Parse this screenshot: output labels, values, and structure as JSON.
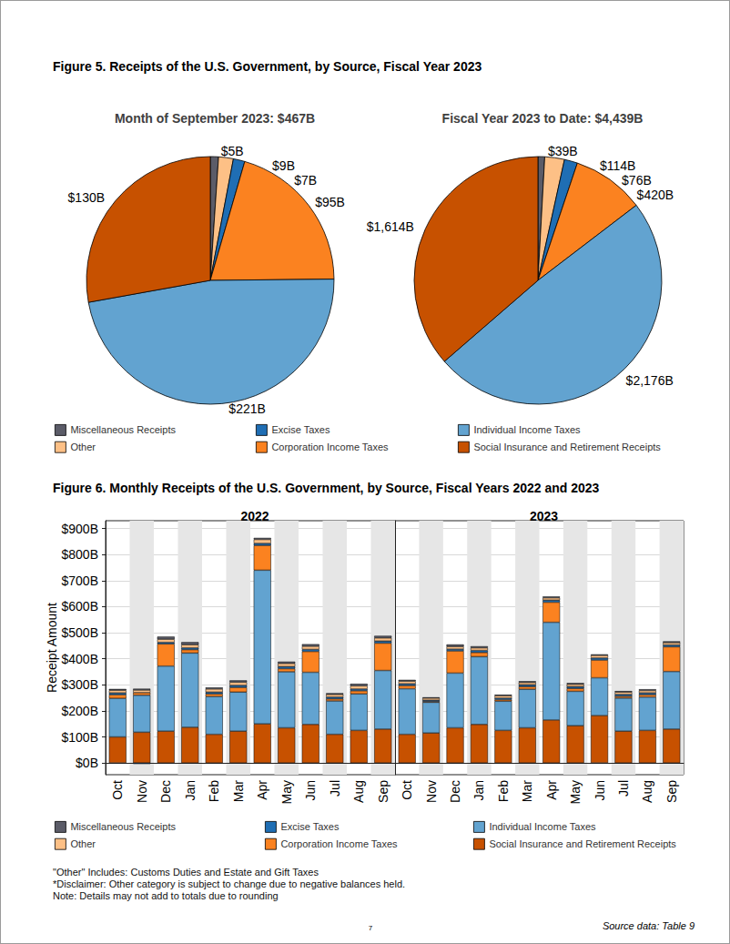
{
  "page": {
    "figure_titles": [
      "Figure 5. Receipts of the U.S. Government, by Source, Fiscal Year 2023",
      "Figure 6. Monthly Receipts of the U.S. Government, by Source, Fiscal Years 2022 and 2023"
    ],
    "notes": [
      "\"Other\" Includes: Customs Duties and Estate and Gift Taxes",
      "*Disclaimer: Other category is subject to change due to negative balances held.",
      "Note: Details may not add to totals due to rounding"
    ],
    "page_number": "7",
    "source": "Source data: Table 9"
  },
  "chart_data": [
    {
      "type": "pie",
      "title": "Month of September 2023: $467B",
      "categories": [
        "Miscellaneous Receipts",
        "Other",
        "Excise Taxes",
        "Corporation Income Taxes",
        "Individual Income Taxes",
        "Social Insurance and Retirement Receipts"
      ],
      "values": [
        5,
        9,
        7,
        95,
        221,
        130
      ],
      "value_labels": [
        "$5B",
        "$9B",
        "$7B",
        "$95B",
        "$221B",
        "$130B"
      ],
      "colors": [
        "#5b5c68",
        "#fdc086",
        "#1f6eb4",
        "#fb8220",
        "#62a3d0",
        "#c75100"
      ],
      "data_labels": true,
      "legend": "bottom"
    },
    {
      "type": "pie",
      "title": "Fiscal Year 2023 to Date: $4,439B",
      "categories": [
        "Miscellaneous Receipts",
        "Other",
        "Excise Taxes",
        "Corporation Income Taxes",
        "Individual Income Taxes",
        "Social Insurance and Retirement Receipts"
      ],
      "values": [
        39,
        114,
        76,
        420,
        2176,
        1614
      ],
      "value_labels": [
        "$39B",
        "$114B",
        "$76B",
        "$420B",
        "$2,176B",
        "$1,614B"
      ],
      "colors": [
        "#5b5c68",
        "#fdc086",
        "#1f6eb4",
        "#fb8220",
        "#62a3d0",
        "#c75100"
      ],
      "data_labels": true
    },
    {
      "type": "bar",
      "title": "2022",
      "stacked": true,
      "grid": true,
      "legend": "bottom",
      "ylabel": "Receipt Amount",
      "categories": [
        "Oct",
        "Nov",
        "Dec",
        "Jan",
        "Feb",
        "Mar",
        "Apr",
        "May",
        "Jun",
        "Jul",
        "Aug",
        "Sep"
      ],
      "ylim": [
        -45,
        930
      ],
      "yticks": [
        {
          "value": 0,
          "label": "$0B"
        },
        {
          "value": 100,
          "label": "$100B"
        },
        {
          "value": 200,
          "label": "$200B"
        },
        {
          "value": 300,
          "label": "$300B"
        },
        {
          "value": 400,
          "label": "$400B"
        },
        {
          "value": 500,
          "label": "$500B"
        },
        {
          "value": 600,
          "label": "$600B"
        },
        {
          "value": 700,
          "label": "$700B"
        },
        {
          "value": 800,
          "label": "$800B"
        },
        {
          "value": 900,
          "label": "$900B"
        }
      ],
      "series": [
        {
          "name": "Miscellaneous Receipts",
          "color": "#5b5c68",
          "values": [
            5,
            5,
            10,
            10,
            6,
            7,
            6,
            7,
            8,
            5,
            8,
            8
          ]
        },
        {
          "name": "Other",
          "color": "#fdc086",
          "values": [
            10,
            10,
            12,
            12,
            12,
            12,
            15,
            12,
            12,
            10,
            12,
            12
          ]
        },
        {
          "name": "Excise Taxes",
          "color": "#1f6eb4",
          "values": [
            7,
            -4,
            6,
            7,
            7,
            8,
            8,
            8,
            8,
            7,
            7,
            8
          ]
        },
        {
          "name": "Corporation Income Taxes",
          "color": "#fb8220",
          "values": [
            14,
            10,
            85,
            13,
            10,
            18,
            95,
            12,
            80,
            8,
            12,
            105
          ]
        },
        {
          "name": "Individual Income Taxes",
          "color": "#62a3d0",
          "values": [
            148,
            142,
            250,
            285,
            145,
            150,
            590,
            215,
            200,
            128,
            140,
            225
          ]
        },
        {
          "name": "Social Insurance and Retirement Receipts",
          "color": "#c75100",
          "values": [
            100,
            118,
            122,
            137,
            110,
            122,
            150,
            135,
            148,
            110,
            125,
            130
          ]
        }
      ]
    },
    {
      "type": "bar",
      "title": "2023",
      "stacked": true,
      "grid": true,
      "tick_labels": "x",
      "categories": [
        "Oct",
        "Nov",
        "Dec",
        "Jan",
        "Feb",
        "Mar",
        "Apr",
        "May",
        "Jun",
        "Jul",
        "Aug",
        "Sep"
      ],
      "ylim": [
        -45,
        930
      ],
      "yticks": [
        {
          "value": 0,
          "label": "$0B"
        },
        {
          "value": 100,
          "label": "$100B"
        },
        {
          "value": 200,
          "label": "$200B"
        },
        {
          "value": 300,
          "label": "$300B"
        },
        {
          "value": 400,
          "label": "$400B"
        },
        {
          "value": 500,
          "label": "$500B"
        },
        {
          "value": 600,
          "label": "$600B"
        },
        {
          "value": 700,
          "label": "$700B"
        },
        {
          "value": 800,
          "label": "$800B"
        },
        {
          "value": 900,
          "label": "$900B"
        }
      ],
      "series": [
        {
          "name": "Miscellaneous Receipts",
          "color": "#5b5c68",
          "values": [
            5,
            3,
            8,
            6,
            4,
            5,
            5,
            5,
            4,
            4,
            5,
            5
          ]
        },
        {
          "name": "Other",
          "color": "#fdc086",
          "values": [
            10,
            8,
            10,
            10,
            9,
            9,
            9,
            9,
            10,
            9,
            9,
            9
          ]
        },
        {
          "name": "Excise Taxes",
          "color": "#1f6eb4",
          "values": [
            7,
            5,
            7,
            8,
            6,
            7,
            8,
            7,
            8,
            7,
            7,
            7
          ]
        },
        {
          "name": "Corporation Income Taxes",
          "color": "#fb8220",
          "values": [
            12,
            3,
            85,
            16,
            6,
            10,
            77,
            11,
            68,
            7,
            9,
            95
          ]
        },
        {
          "name": "Individual Income Taxes",
          "color": "#62a3d0",
          "values": [
            175,
            118,
            210,
            260,
            112,
            148,
            375,
            132,
            145,
            127,
            128,
            221
          ]
        },
        {
          "name": "Social Insurance and Retirement Receipts",
          "color": "#c75100",
          "values": [
            110,
            115,
            135,
            148,
            125,
            135,
            165,
            143,
            182,
            122,
            125,
            130
          ]
        }
      ]
    }
  ]
}
